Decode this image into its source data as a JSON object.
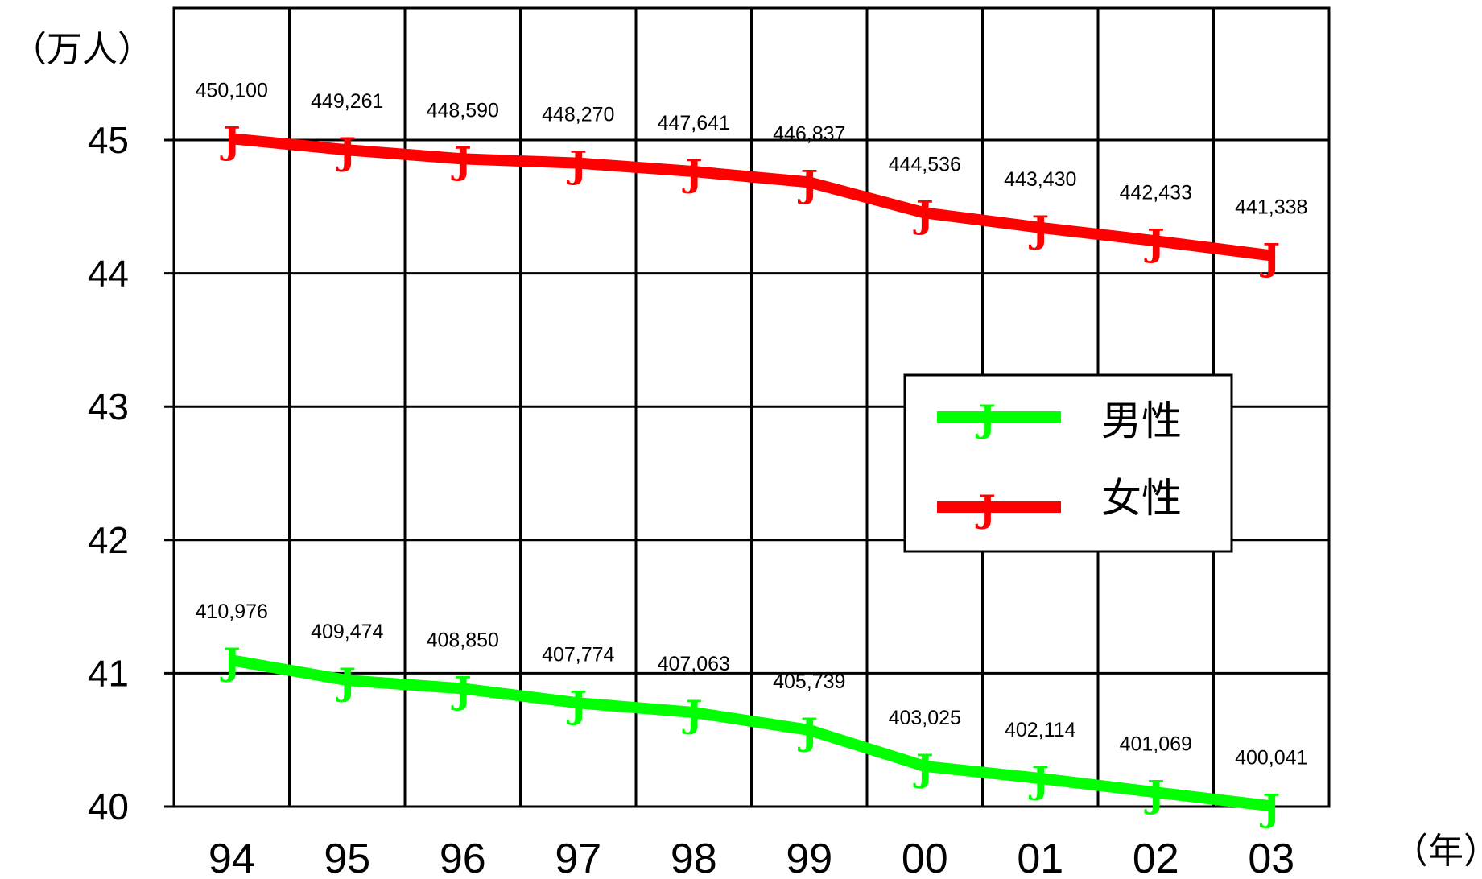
{
  "chart_data": {
    "type": "line",
    "ylabel": "（万人）",
    "xlabel": "（年）",
    "ylim": [
      40,
      45.5
    ],
    "yticks": [
      40,
      41,
      42,
      43,
      44,
      45
    ],
    "categories": [
      "94",
      "95",
      "96",
      "97",
      "98",
      "99",
      "00",
      "01",
      "02",
      "03"
    ],
    "grid": true,
    "legend_position": "right-middle",
    "marker_glyph": "J",
    "series": [
      {
        "name": "男性",
        "color": "#00ff00",
        "values": [
          410976,
          409474,
          408850,
          407774,
          407063,
          405739,
          403025,
          402114,
          401069,
          400041
        ],
        "labels": [
          "410,976",
          "409,474",
          "408,850",
          "407,774",
          "407,063",
          "405,739",
          "403,025",
          "402,114",
          "401,069",
          "400,041"
        ]
      },
      {
        "name": "女性",
        "color": "#ff0000",
        "values": [
          450100,
          449261,
          448590,
          448270,
          447641,
          446837,
          444536,
          443430,
          442433,
          441338
        ],
        "labels": [
          "450,100",
          "449,261",
          "448,590",
          "448,270",
          "447,641",
          "446,837",
          "444,536",
          "443,430",
          "442,433",
          "441,338"
        ]
      }
    ]
  }
}
